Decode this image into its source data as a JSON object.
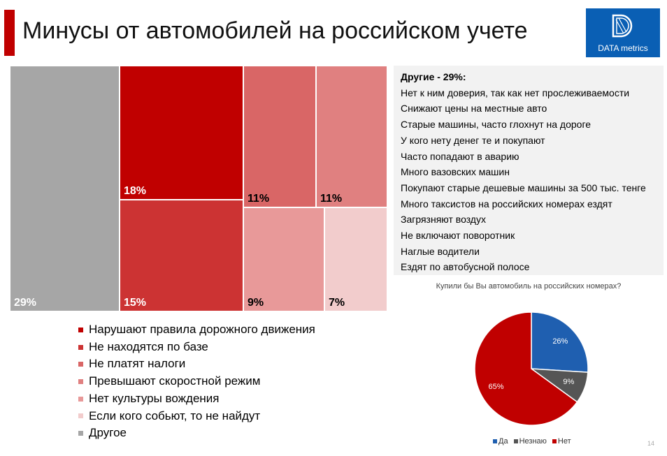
{
  "header": {
    "title": "Минусы от автомобилей на российском учете",
    "logo_text": "DATA metrics",
    "logo_icon": "d-letter-logo-icon"
  },
  "colors": {
    "accent": "#c00000",
    "logo_bg": "#0a5fb4",
    "tile_1": "#c00000",
    "tile_2": "#cc3333",
    "tile_3": "#d96666",
    "tile_4": "#e08080",
    "tile_5": "#e89999",
    "tile_6": "#f2cccc",
    "tile_other": "#a6a6a6",
    "pie_yes": "#1f5fb0",
    "pie_dontknow": "#555555",
    "pie_no": "#c00000"
  },
  "chart_data": [
    {
      "type": "treemap",
      "title": "",
      "categories": [
        "Нарушают правила дорожного движения",
        "Не находятся по базе",
        "Не платят налоги",
        "Превышают скоростной режим",
        "Нет культуры вождения",
        "Если кого собьют, то не найдут",
        "Другое"
      ],
      "values": [
        18,
        15,
        11,
        11,
        9,
        7,
        29
      ],
      "labels": [
        "18%",
        "15%",
        "11%",
        "11%",
        "9%",
        "7%",
        "29%"
      ],
      "legend_position": "bottom-left"
    },
    {
      "type": "pie",
      "title": "Купили бы Вы автомобиль на российских номерах?",
      "categories": [
        "Да",
        "Незнаю",
        "Нет"
      ],
      "values": [
        26,
        9,
        65
      ],
      "labels": [
        "26%",
        "9%",
        "65%"
      ],
      "legend_position": "bottom"
    }
  ],
  "other_box": {
    "heading": "Другие - 29%:",
    "items": [
      "Нет к ним доверия, так как нет прослеживаемости",
      "Снижают цены на местные авто",
      "Старые машины, часто глохнут на дороге",
      "У кого нету денег те и покупают",
      "Часто попадают в аварию",
      "Много вазовских машин",
      "Покупают старые дешевые машины за 500 тыс. тенге",
      "Много таксистов на российских номерах ездят",
      "Загрязняют воздух",
      "Не включают поворотник",
      "Наглые водители",
      "Ездят по автобусной полосе"
    ]
  },
  "page_number": "14"
}
